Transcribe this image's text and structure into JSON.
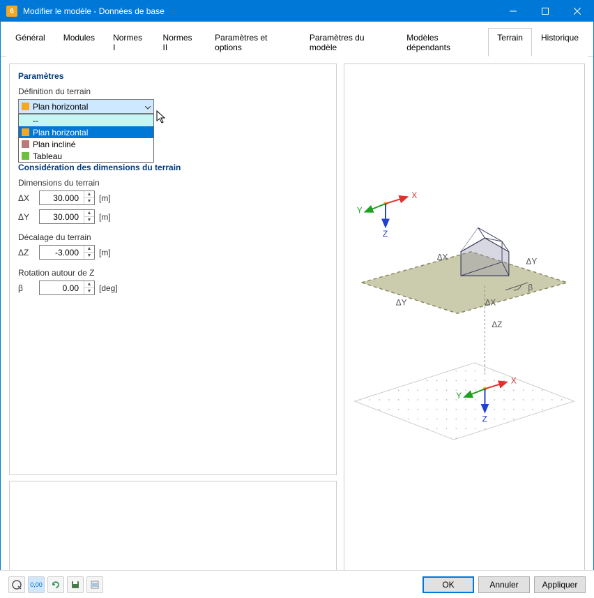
{
  "window": {
    "title": "Modifier le modèle - Données de base"
  },
  "tabs": {
    "items": [
      "Général",
      "Modules",
      "Normes I",
      "Normes II",
      "Paramètres et options",
      "Paramètres du modèle",
      "Modèles dépendants",
      "Terrain",
      "Historique"
    ],
    "active_index": 7
  },
  "panel": {
    "title": "Paramètres",
    "definition_label": "Définition du terrain",
    "combo": {
      "selected_label": "Plan horizontal",
      "selected_color": "#f5a623"
    },
    "dropdown": {
      "items": [
        {
          "label": "--",
          "color": "#c4f6f6",
          "first": true
        },
        {
          "label": "Plan horizontal",
          "color": "#f5a623",
          "selected": true
        },
        {
          "label": "Plan incliné",
          "color": "#b77b7b"
        },
        {
          "label": "Tableau",
          "color": "#6fbf3f"
        }
      ]
    },
    "consideration_title": "Considération des dimensions du terrain",
    "dimensions_label": "Dimensions du terrain",
    "dX": {
      "label": "ΔX",
      "value": "30.000",
      "unit": "[m]"
    },
    "dY": {
      "label": "ΔY",
      "value": "30.000",
      "unit": "[m]"
    },
    "offset_label": "Décalage du terrain",
    "dZ": {
      "label": "ΔZ",
      "value": "-3.000",
      "unit": "[m]"
    },
    "rotation_label": "Rotation autour de Z",
    "beta": {
      "label": "β",
      "value": "0.00",
      "unit": "[deg]"
    }
  },
  "footer": {
    "ok": "OK",
    "cancel": "Annuler",
    "apply": "Appliquer"
  },
  "colors": {
    "titlebar": "#0078d7",
    "section_title": "#003a80",
    "terrain_fill": "#b5b58a",
    "terrain_stroke": "#888860",
    "house_fill": "#9090b0",
    "house_stroke": "#404060",
    "axis_x": "#e03030",
    "axis_y": "#20a020",
    "axis_z": "#2040d0"
  },
  "preview": {
    "axis_labels": {
      "x": "X",
      "y": "Y",
      "z": "Z"
    },
    "dim_labels": {
      "dx": "ΔX",
      "dy": "ΔY",
      "dz": "ΔZ",
      "beta": "β"
    }
  }
}
